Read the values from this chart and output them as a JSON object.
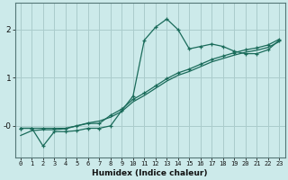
{
  "title": "",
  "xlabel": "Humidex (Indice chaleur)",
  "bg_color": "#cceaea",
  "grid_color": "#aacccc",
  "line_color": "#1a6b5a",
  "xlim": [
    -0.5,
    23.5
  ],
  "ylim": [
    -0.65,
    2.55
  ],
  "xticks": [
    0,
    1,
    2,
    3,
    4,
    5,
    6,
    7,
    8,
    9,
    10,
    11,
    12,
    13,
    14,
    15,
    16,
    17,
    18,
    19,
    20,
    21,
    22,
    23
  ],
  "yticks": [
    -0.0,
    1.0,
    2.0
  ],
  "ytick_labels": [
    "-0",
    "1",
    "2"
  ],
  "series1_x": [
    0,
    1,
    2,
    3,
    4,
    5,
    6,
    7,
    8,
    9,
    10,
    11,
    12,
    13,
    14,
    15,
    16,
    17,
    18,
    19,
    20,
    21,
    22,
    23
  ],
  "series1_y": [
    -0.05,
    -0.05,
    -0.42,
    -0.12,
    -0.12,
    -0.1,
    -0.05,
    -0.05,
    0.0,
    0.32,
    0.62,
    1.78,
    2.05,
    2.22,
    2.0,
    1.6,
    1.65,
    1.7,
    1.65,
    1.55,
    1.5,
    1.5,
    1.58,
    1.78
  ],
  "series2_x": [
    0,
    1,
    2,
    3,
    4,
    5,
    6,
    7,
    8,
    9,
    10,
    11,
    12,
    13,
    14,
    15,
    16,
    17,
    18,
    19,
    20,
    21,
    22,
    23
  ],
  "series2_y": [
    -0.05,
    -0.05,
    -0.05,
    -0.05,
    -0.05,
    0.0,
    0.05,
    0.05,
    0.22,
    0.35,
    0.55,
    0.68,
    0.83,
    0.98,
    1.1,
    1.18,
    1.28,
    1.38,
    1.45,
    1.52,
    1.58,
    1.62,
    1.68,
    1.8
  ],
  "series3_x": [
    0,
    1,
    2,
    3,
    4,
    5,
    6,
    7,
    8,
    9,
    10,
    11,
    12,
    13,
    14,
    15,
    16,
    17,
    18,
    19,
    20,
    21,
    22,
    23
  ],
  "series3_y": [
    -0.2,
    -0.1,
    -0.08,
    -0.08,
    -0.06,
    0.0,
    0.06,
    0.1,
    0.18,
    0.3,
    0.5,
    0.63,
    0.78,
    0.93,
    1.05,
    1.13,
    1.23,
    1.33,
    1.4,
    1.47,
    1.53,
    1.57,
    1.63,
    1.75
  ]
}
